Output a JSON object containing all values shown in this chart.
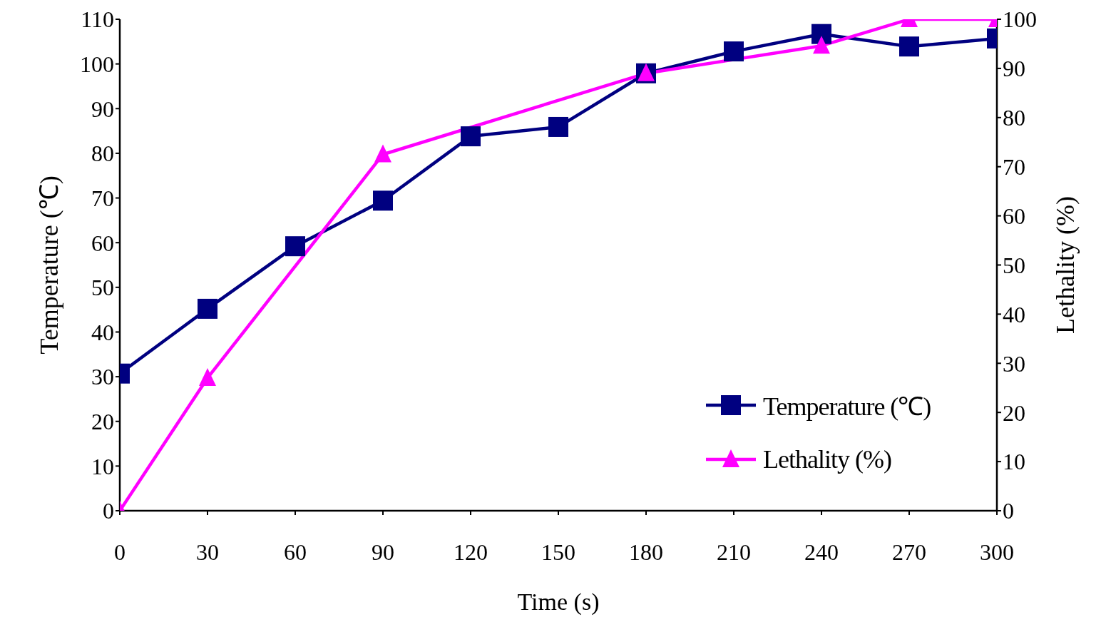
{
  "chart_data": {
    "type": "line",
    "xlabel": "Time (s)",
    "ylabel": "Temperature (℃)",
    "y2label": "Lethality (%)",
    "xlim": [
      0,
      300
    ],
    "xticks": [
      0,
      30,
      60,
      90,
      120,
      150,
      180,
      210,
      240,
      270,
      300
    ],
    "ylim": [
      0,
      110
    ],
    "yticks": [
      0,
      10,
      20,
      30,
      40,
      50,
      60,
      70,
      80,
      90,
      100,
      110
    ],
    "y2lim": [
      0,
      100
    ],
    "y2ticks": [
      0,
      10,
      20,
      30,
      40,
      50,
      60,
      70,
      80,
      90,
      100
    ],
    "grid": false,
    "legend": "bottom right",
    "line_style": "solid",
    "series": [
      {
        "name": "Temperature (℃)",
        "color": "#000080",
        "marker": "square",
        "x": [
          0,
          30,
          60,
          90,
          120,
          150,
          180,
          210,
          240,
          270,
          300
        ],
        "values": [
          30.7,
          45.2,
          59.2,
          69.4,
          83.8,
          85.9,
          97.9,
          102.8,
          106.7,
          103.9,
          105.7
        ]
      },
      {
        "name": "Lethality (%)",
        "color": "#ff00ff",
        "marker": "triangle",
        "axis": "y2",
        "x": [
          0,
          30,
          90,
          180,
          240,
          270,
          300
        ],
        "values": [
          0,
          27,
          72.5,
          89,
          94.6,
          100,
          100
        ]
      }
    ]
  }
}
